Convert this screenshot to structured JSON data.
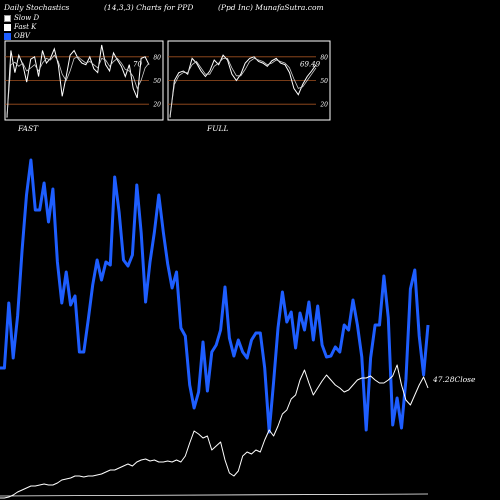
{
  "header": {
    "left": "Daily Stochastics",
    "middle": "(14,3,3) Charts for PPD",
    "right": "(Ppd Inc) MunafaSutra.com"
  },
  "legend": [
    {
      "label": "Slow  D",
      "color": "#ffffff",
      "border": "#999999"
    },
    {
      "label": "Fast K",
      "color": "#ffffff",
      "border": "#ffffff"
    },
    {
      "label": "OBV",
      "color": "#1e5eff",
      "border": "#1e5eff"
    }
  ],
  "colors": {
    "background": "#000000",
    "obv": "#1e5eff",
    "close": "#ffffff",
    "panel_grid": "#a05020"
  },
  "chart_data": [
    {
      "type": "line",
      "title": "FAST",
      "ylim": [
        0,
        100
      ],
      "yticks": [
        20,
        50,
        80
      ],
      "last_value_label": "70",
      "series": [
        {
          "name": "Fast K",
          "values": [
            3,
            88,
            60,
            82,
            70,
            48,
            77,
            80,
            55,
            88,
            72,
            78,
            90,
            70,
            30,
            55,
            82,
            88,
            78,
            72,
            70,
            80,
            65,
            60,
            95,
            70,
            62,
            85,
            76,
            68,
            55,
            70,
            40,
            28,
            78,
            80,
            70
          ]
        },
        {
          "name": "Slow  D",
          "values": [
            5,
            70,
            73,
            68,
            72,
            62,
            66,
            70,
            62,
            72,
            78,
            76,
            82,
            74,
            58,
            50,
            62,
            78,
            80,
            76,
            72,
            74,
            70,
            66,
            78,
            76,
            68,
            74,
            78,
            72,
            64,
            62,
            55,
            40,
            50,
            66,
            72
          ]
        }
      ]
    },
    {
      "type": "line",
      "title": "FULL",
      "ylim": [
        0,
        100
      ],
      "yticks": [
        20,
        50,
        80
      ],
      "last_value_label": "69.49",
      "series": [
        {
          "name": "Fast K",
          "values": [
            3,
            50,
            60,
            62,
            58,
            78,
            72,
            62,
            55,
            62,
            76,
            70,
            82,
            76,
            58,
            50,
            58,
            72,
            78,
            80,
            74,
            72,
            68,
            75,
            78,
            72,
            70,
            60,
            40,
            32,
            45,
            55,
            62,
            70
          ]
        },
        {
          "name": "Slow  D",
          "values": [
            5,
            45,
            56,
            60,
            60,
            70,
            74,
            66,
            58,
            58,
            68,
            72,
            78,
            78,
            66,
            56,
            56,
            64,
            74,
            78,
            76,
            74,
            70,
            72,
            76,
            74,
            72,
            66,
            52,
            40,
            42,
            50,
            58,
            66
          ]
        }
      ]
    },
    {
      "type": "line",
      "title": "",
      "last_value_label": "47.28Close",
      "series": [
        {
          "name": "OBV",
          "values": [
            368,
            368,
            303,
            358,
            316,
            250,
            195,
            160,
            210,
            210,
            183,
            222,
            189,
            262,
            303,
            272,
            305,
            296,
            352,
            352,
            320,
            285,
            260,
            280,
            262,
            265,
            177,
            212,
            260,
            266,
            255,
            185,
            233,
            302,
            262,
            232,
            195,
            232,
            264,
            288,
            272,
            328,
            336,
            385,
            408,
            392,
            342,
            391,
            352,
            345,
            330,
            287,
            338,
            356,
            340,
            352,
            358,
            340,
            333,
            333,
            368,
            432,
            382,
            328,
            292,
            322,
            312,
            348,
            313,
            330,
            302,
            340,
            306,
            345,
            357,
            356,
            347,
            352,
            325,
            330,
            300,
            325,
            357,
            430,
            358,
            325,
            325,
            276,
            318,
            425,
            398,
            428,
            380,
            289,
            270,
            336,
            375,
            325
          ]
        },
        {
          "name": "Close",
          "values": [
            498,
            498,
            497,
            495,
            492,
            490,
            488,
            486,
            486,
            485,
            484,
            485,
            485,
            483,
            480,
            479,
            478,
            476,
            476,
            477,
            476,
            476,
            475,
            474,
            472,
            470,
            470,
            468,
            466,
            464,
            466,
            462,
            460,
            459,
            461,
            460,
            462,
            462,
            461,
            462,
            460,
            462,
            456,
            443,
            431,
            434,
            438,
            436,
            450,
            446,
            442,
            460,
            473,
            476,
            471,
            456,
            452,
            454,
            450,
            452,
            440,
            430,
            436,
            426,
            414,
            410,
            399,
            395,
            380,
            370,
            383,
            395,
            388,
            381,
            375,
            380,
            385,
            388,
            392,
            390,
            385,
            380,
            378,
            378,
            376,
            380,
            383,
            383,
            380,
            376,
            365,
            385,
            400,
            405,
            395,
            385,
            377,
            388
          ]
        }
      ]
    }
  ]
}
